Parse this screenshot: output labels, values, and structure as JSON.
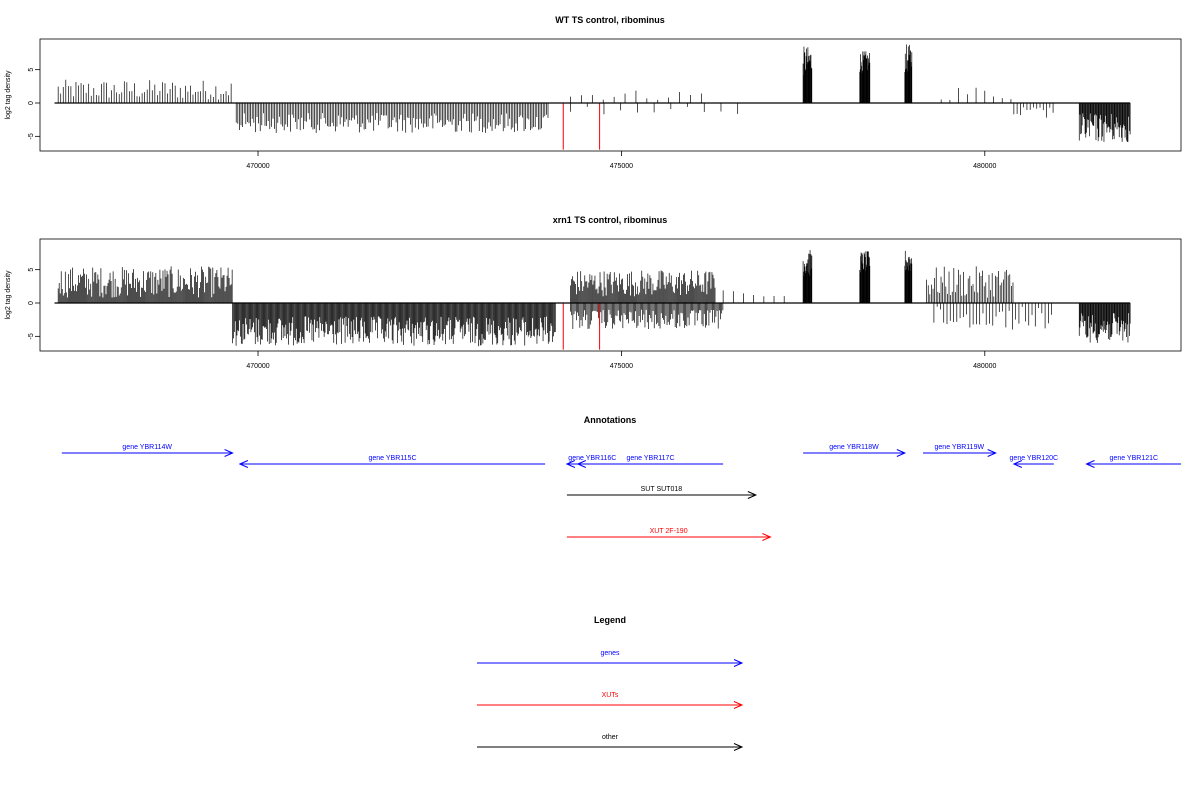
{
  "chart_data": [
    {
      "type": "bar",
      "title": "WT TS control, ribominus",
      "xlabel": "",
      "ylabel": "log2 tag density",
      "xlim": [
        467000,
        482700
      ],
      "ylim": [
        -7.2,
        9.6
      ],
      "xticks": [
        470000,
        475000,
        480000
      ],
      "xtick_labels": [
        "470000",
        "475000",
        "480000"
      ],
      "yticks": [
        5,
        0,
        -5
      ],
      "ytick_labels": [
        "5",
        "0",
        "-5"
      ],
      "grid": false,
      "baseline": {
        "x_start": 467200,
        "x_end": 482000,
        "y": 0
      },
      "markers": [
        {
          "x": 474200,
          "y_bottom": -7,
          "color": "#ff0000"
        },
        {
          "x": 474700,
          "y_bottom": -7,
          "color": "#ff0000"
        }
      ],
      "segments": [
        {
          "from": 467250,
          "to": 469650,
          "step": 35,
          "min": 0.5,
          "max": 3.5,
          "sign": 1
        },
        {
          "from": 469700,
          "to": 474000,
          "step": 22,
          "min": 1.5,
          "max": 4.5,
          "sign": -1
        },
        {
          "from": 474300,
          "to": 476200,
          "step": 150,
          "min": 0.4,
          "max": 2.0,
          "sign": 1
        },
        {
          "from": 474300,
          "to": 476800,
          "step": 230,
          "min": 0.4,
          "max": 2.0,
          "sign": -1
        },
        {
          "from": 477500,
          "to": 477620,
          "step": 6,
          "min": 4.0,
          "max": 8.5,
          "sign": 1
        },
        {
          "from": 478280,
          "to": 478420,
          "step": 6,
          "min": 4.5,
          "max": 7.8,
          "sign": 1
        },
        {
          "from": 478900,
          "to": 479000,
          "step": 6,
          "min": 4.5,
          "max": 8.8,
          "sign": 1
        },
        {
          "from": 479400,
          "to": 480400,
          "step": 120,
          "min": 0.4,
          "max": 2.6,
          "sign": 1
        },
        {
          "from": 480400,
          "to": 480950,
          "step": 45,
          "min": 0.5,
          "max": 2.5,
          "sign": -1
        },
        {
          "from": 481300,
          "to": 482000,
          "step": 10,
          "min": 1.5,
          "max": 6.0,
          "sign": -1
        }
      ]
    },
    {
      "type": "bar",
      "title": "xrn1 TS control, ribominus",
      "xlabel": "",
      "ylabel": "log2 tag density",
      "xlim": [
        467000,
        482700
      ],
      "ylim": [
        -7.2,
        9.6
      ],
      "xticks": [
        470000,
        475000,
        480000
      ],
      "xtick_labels": [
        "470000",
        "475000",
        "480000"
      ],
      "yticks": [
        5,
        0,
        -5
      ],
      "ytick_labels": [
        "5",
        "0",
        "-5"
      ],
      "grid": false,
      "baseline": {
        "x_start": 467200,
        "x_end": 482000,
        "y": 0
      },
      "markers": [
        {
          "x": 474200,
          "y_bottom": -7,
          "color": "#ff0000"
        },
        {
          "x": 474700,
          "y_bottom": -7,
          "color": "#ff0000"
        }
      ],
      "segments": [
        {
          "from": 467250,
          "to": 469650,
          "step": 14,
          "min": 0.8,
          "max": 5.5,
          "sign": 1
        },
        {
          "from": 469650,
          "to": 474100,
          "step": 12,
          "min": 2.0,
          "max": 6.5,
          "sign": -1
        },
        {
          "from": 474300,
          "to": 476300,
          "step": 14,
          "min": 1.0,
          "max": 5.0,
          "sign": 1
        },
        {
          "from": 474300,
          "to": 476400,
          "step": 16,
          "min": 1.0,
          "max": 4.0,
          "sign": -1
        },
        {
          "from": 476400,
          "to": 477300,
          "step": 140,
          "min": 0.3,
          "max": 2.0,
          "sign": 1
        },
        {
          "from": 477500,
          "to": 477620,
          "step": 6,
          "min": 4.0,
          "max": 8.0,
          "sign": 1
        },
        {
          "from": 478280,
          "to": 478420,
          "step": 6,
          "min": 4.5,
          "max": 7.8,
          "sign": 1
        },
        {
          "from": 478900,
          "to": 479000,
          "step": 6,
          "min": 4.5,
          "max": 8.0,
          "sign": 1
        },
        {
          "from": 479200,
          "to": 480400,
          "step": 22,
          "min": 0.8,
          "max": 5.5,
          "sign": 1
        },
        {
          "from": 479300,
          "to": 480950,
          "step": 45,
          "min": 0.5,
          "max": 4.0,
          "sign": -1
        },
        {
          "from": 481300,
          "to": 482000,
          "step": 10,
          "min": 1.5,
          "max": 6.0,
          "sign": -1
        }
      ]
    }
  ],
  "annotations": {
    "title": "Annotations",
    "xlim": [
      467000,
      482700
    ],
    "features": [
      {
        "label": "gene YBR114W",
        "start": 467300,
        "end": 469650,
        "strand": "+",
        "row": 0,
        "kind": "gene",
        "color": "#0000ff"
      },
      {
        "label": "gene YBR115C",
        "start": 469750,
        "end": 473950,
        "strand": "-",
        "row": 1,
        "kind": "gene",
        "color": "#0000ff"
      },
      {
        "label": "gene YBR116C",
        "start": 474250,
        "end": 474950,
        "strand": "-",
        "row": 1,
        "kind": "gene",
        "color": "#0000ff"
      },
      {
        "label": "gene YBR117C",
        "start": 474400,
        "end": 476400,
        "strand": "-",
        "row": 1,
        "kind": "gene",
        "color": "#0000ff"
      },
      {
        "label": "gene YBR118W",
        "start": 477500,
        "end": 478900,
        "strand": "+",
        "row": 0,
        "kind": "gene",
        "color": "#0000ff"
      },
      {
        "label": "gene YBR119W",
        "start": 479150,
        "end": 480150,
        "strand": "+",
        "row": 0,
        "kind": "gene",
        "color": "#0000ff"
      },
      {
        "label": "gene YBR120C",
        "start": 480400,
        "end": 480950,
        "strand": "-",
        "row": 1,
        "kind": "gene",
        "color": "#0000ff"
      },
      {
        "label": "gene YBR121C",
        "start": 481400,
        "end": 482700,
        "strand": "-",
        "row": 1,
        "kind": "gene",
        "color": "#0000ff"
      },
      {
        "label": "SUT SUT018",
        "start": 474250,
        "end": 476850,
        "strand": "+",
        "row": 2,
        "kind": "other",
        "color": "#000000"
      },
      {
        "label": "XUT 2F-190",
        "start": 474250,
        "end": 477050,
        "strand": "+",
        "row": 3,
        "kind": "xut",
        "color": "#ff0000"
      }
    ]
  },
  "legend": {
    "title": "Legend",
    "items": [
      {
        "label": "genes",
        "color": "#0000ff"
      },
      {
        "label": "XUTs",
        "color": "#ff0000"
      },
      {
        "label": "other",
        "color": "#000000"
      }
    ]
  }
}
